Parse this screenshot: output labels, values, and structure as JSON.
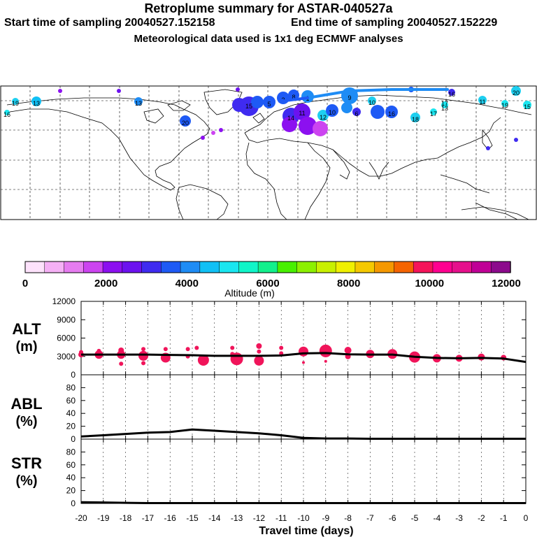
{
  "header": {
    "title": "Retroplume summary for ASTAR-040527a",
    "start_label": "Start time of sampling 20040527.152158",
    "end_label": "End time of sampling 20040527.152229",
    "met_line": "Meteorological data used is 1x1 deg ECMWF analyses"
  },
  "map": {
    "land_color": "#ffffff",
    "grid_style": "dashed",
    "plume_labels": [
      "19",
      "13",
      "16",
      "13",
      "20",
      "15",
      "5",
      "3",
      "8",
      "12",
      "11",
      "10",
      "9",
      "6",
      "14",
      "10",
      "18",
      "16",
      "17",
      "13",
      "11",
      "19",
      "15",
      "20",
      "17",
      "16",
      "1"
    ]
  },
  "colorbar": {
    "title": "Altitude (m)",
    "tick_labels": [
      "0",
      "2000",
      "4000",
      "6000",
      "8000",
      "10000",
      "12000"
    ],
    "range": [
      0,
      12000
    ],
    "colors": [
      "#fde2fb",
      "#f5b0f5",
      "#e67cf0",
      "#cc44f0",
      "#8c10f0",
      "#6c12ef",
      "#3f2bf0",
      "#1e5af5",
      "#1e8cf5",
      "#10c0f5",
      "#1ae6f0",
      "#10f5c8",
      "#12f08c",
      "#48f000",
      "#8cf000",
      "#c8f000",
      "#f0f000",
      "#f5c800",
      "#f59800",
      "#f56400",
      "#f5145a",
      "#ff0090",
      "#e6108c",
      "#c00096",
      "#8c0a8c"
    ]
  },
  "chart_data": [
    {
      "type": "line",
      "panel": "ALT",
      "ylabel": "ALT",
      "yunit": "(m)",
      "ylim": [
        0,
        12000
      ],
      "yticks": [
        0,
        3000,
        6000,
        9000,
        12000
      ],
      "xlim": [
        -20,
        0
      ],
      "x": [
        -20,
        -19,
        -18,
        -17,
        -16,
        -15,
        -14,
        -13,
        -12,
        -11,
        -10,
        -9,
        -8,
        -7,
        -6,
        -5,
        -4,
        -3,
        -2,
        -1,
        0
      ],
      "series": [
        {
          "name": "mean altitude",
          "values": [
            3300,
            3300,
            3300,
            3300,
            3250,
            3200,
            3100,
            3100,
            3100,
            3150,
            3500,
            3550,
            3350,
            3300,
            3300,
            2950,
            2750,
            2700,
            2750,
            2650,
            2100
          ]
        }
      ],
      "cluster_markers": [
        {
          "x": -20.0,
          "y": 3300,
          "size": 4
        },
        {
          "x": -20.0,
          "y": 3700,
          "size": 3
        },
        {
          "x": -19.2,
          "y": 3300,
          "size": 6
        },
        {
          "x": -19.2,
          "y": 3900,
          "size": 3
        },
        {
          "x": -18.2,
          "y": 4000,
          "size": 4
        },
        {
          "x": -18.2,
          "y": 3300,
          "size": 6
        },
        {
          "x": -18.2,
          "y": 1800,
          "size": 3
        },
        {
          "x": -17.2,
          "y": 4200,
          "size": 3
        },
        {
          "x": -17.2,
          "y": 3100,
          "size": 7
        },
        {
          "x": -17.2,
          "y": 1900,
          "size": 3
        },
        {
          "x": -16.2,
          "y": 4200,
          "size": 3
        },
        {
          "x": -16.2,
          "y": 2800,
          "size": 7
        },
        {
          "x": -15.2,
          "y": 4200,
          "size": 3
        },
        {
          "x": -15.2,
          "y": 3000,
          "size": 3
        },
        {
          "x": -14.8,
          "y": 4400,
          "size": 3
        },
        {
          "x": -14.5,
          "y": 2400,
          "size": 8
        },
        {
          "x": -13.2,
          "y": 4400,
          "size": 3
        },
        {
          "x": -13.2,
          "y": 3400,
          "size": 3
        },
        {
          "x": -13.0,
          "y": 2600,
          "size": 9
        },
        {
          "x": -12.0,
          "y": 4700,
          "size": 4
        },
        {
          "x": -12.0,
          "y": 3800,
          "size": 3
        },
        {
          "x": -12.0,
          "y": 2300,
          "size": 7
        },
        {
          "x": -11.0,
          "y": 4400,
          "size": 3
        },
        {
          "x": -11.0,
          "y": 3500,
          "size": 3
        },
        {
          "x": -10.0,
          "y": 3800,
          "size": 7
        },
        {
          "x": -10.0,
          "y": 2000,
          "size": 2
        },
        {
          "x": -9.0,
          "y": 3900,
          "size": 9
        },
        {
          "x": -9.0,
          "y": 2200,
          "size": 2
        },
        {
          "x": -8.0,
          "y": 4000,
          "size": 5
        },
        {
          "x": -8.0,
          "y": 3000,
          "size": 4
        },
        {
          "x": -7.0,
          "y": 3400,
          "size": 6
        },
        {
          "x": -6.0,
          "y": 3400,
          "size": 7
        },
        {
          "x": -5.0,
          "y": 2900,
          "size": 8
        },
        {
          "x": -4.0,
          "y": 2700,
          "size": 6
        },
        {
          "x": -3.0,
          "y": 2700,
          "size": 5
        },
        {
          "x": -2.0,
          "y": 2900,
          "size": 5
        },
        {
          "x": -1.0,
          "y": 2800,
          "size": 4
        }
      ],
      "marker_color": "#f0145a"
    },
    {
      "type": "line",
      "panel": "ABL",
      "ylabel": "ABL",
      "yunit": "(%)",
      "ylim": [
        0,
        100
      ],
      "yticks": [
        0,
        20,
        40,
        60,
        80
      ],
      "xlim": [
        -20,
        0
      ],
      "x": [
        -20,
        -19,
        -18,
        -17,
        -16,
        -15,
        -14,
        -13,
        -12,
        -11,
        -10,
        -9,
        -8,
        -7,
        -6,
        -5,
        -4,
        -3,
        -2,
        -1,
        0
      ],
      "series": [
        {
          "name": "fraction in ABL",
          "values": [
            4,
            6,
            8,
            10,
            11,
            15,
            13,
            11,
            9,
            6,
            2,
            1,
            1,
            0.5,
            0.5,
            0.5,
            0.5,
            0.5,
            0.5,
            0.5,
            0.5
          ]
        }
      ]
    },
    {
      "type": "line",
      "panel": "STR",
      "ylabel": "STR",
      "yunit": "(%)",
      "ylim": [
        0,
        100
      ],
      "yticks": [
        0,
        20,
        40,
        60,
        80
      ],
      "xlim": [
        -20,
        0
      ],
      "x": [
        -20,
        -19,
        -18,
        -17,
        -16,
        -15,
        -14,
        -13,
        -12,
        -11,
        -10,
        -9,
        -8,
        -7,
        -6,
        -5,
        -4,
        -3,
        -2,
        -1,
        0
      ],
      "series": [
        {
          "name": "fraction in stratosphere",
          "values": [
            2,
            1.5,
            1,
            0.5,
            0.5,
            0.5,
            0.5,
            0.5,
            0.5,
            0.5,
            0.5,
            0.5,
            0.5,
            0.5,
            0.5,
            0.5,
            0.5,
            0.5,
            0.5,
            0.5,
            0.5
          ]
        }
      ],
      "xlabel": "Travel time (days)",
      "xticks": [
        "-20",
        "-19",
        "-18",
        "-17",
        "-16",
        "-15",
        "-14",
        "-13",
        "-12",
        "-11",
        "-10",
        "-9",
        "-8",
        "-7",
        "-6",
        "-5",
        "-4",
        "-3",
        "-2",
        "-1",
        "0"
      ]
    }
  ]
}
